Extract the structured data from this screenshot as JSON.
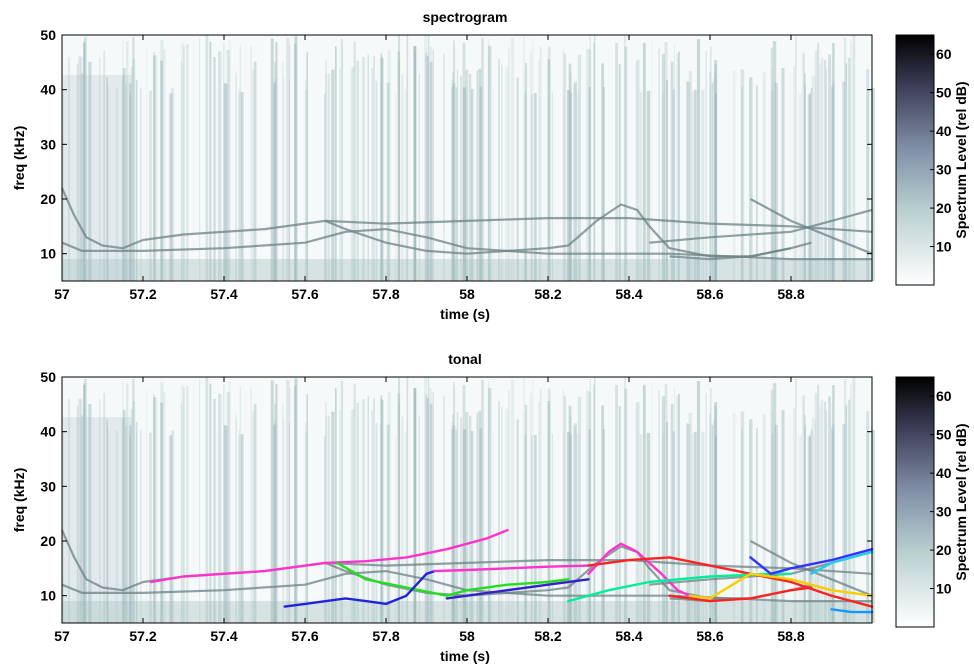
{
  "chart_data": [
    {
      "type": "heatmap",
      "title": "spectrogram",
      "xlabel": "time (s)",
      "ylabel": "freq (kHz)",
      "xlim": [
        57,
        59
      ],
      "ylim": [
        5,
        50
      ],
      "xticks": [
        "57",
        "57.2",
        "57.4",
        "57.6",
        "57.8",
        "58",
        "58.2",
        "58.4",
        "58.6",
        "58.8"
      ],
      "yticks": [
        "10",
        "20",
        "30",
        "40",
        "50"
      ],
      "colorbar": {
        "label": "Spectrum Level (rel dB)",
        "ticks": [
          "10",
          "20",
          "30",
          "40",
          "50",
          "60"
        ],
        "range": [
          0,
          65
        ]
      },
      "background_features": [
        {
          "x": [
            57.0,
            57.03,
            57.06,
            57.1,
            57.15,
            57.2,
            57.3,
            57.5,
            57.65,
            57.8,
            58.0,
            58.2,
            58.4,
            58.6,
            58.8,
            59.0
          ],
          "y": [
            22,
            17,
            13,
            11.5,
            11,
            12.5,
            13.5,
            14.5,
            16,
            15.5,
            16,
            16.5,
            16.5,
            15.5,
            15,
            14
          ]
        },
        {
          "x": [
            57.0,
            57.05,
            57.1,
            57.2,
            57.4,
            57.6,
            57.7,
            57.8,
            57.9,
            58.0,
            58.2,
            58.5,
            58.8,
            59.0
          ],
          "y": [
            12,
            10.5,
            10.5,
            10.5,
            11,
            12,
            14,
            14.5,
            13,
            11,
            10,
            10,
            9,
            9
          ]
        },
        {
          "x": [
            57.65,
            57.7,
            57.8,
            57.9,
            58.0,
            58.1,
            58.2,
            58.25,
            58.32,
            58.38,
            58.42,
            58.45,
            58.5,
            58.6,
            58.7,
            58.8
          ],
          "y": [
            16,
            14.5,
            12,
            10.5,
            10,
            10.5,
            11,
            11.5,
            16,
            19,
            18,
            15,
            11,
            9.5,
            9.5,
            11
          ]
        },
        {
          "x": [
            58.5,
            58.6,
            58.7,
            58.8,
            58.85
          ],
          "y": [
            9.5,
            9,
            9.5,
            11,
            12
          ]
        },
        {
          "x": [
            58.45,
            58.6,
            58.8,
            58.9,
            59.0
          ],
          "y": [
            12,
            13,
            14,
            16,
            18
          ]
        },
        {
          "x": [
            58.7,
            58.8,
            58.9,
            59.0
          ],
          "y": [
            20,
            16,
            13,
            10
          ]
        }
      ]
    },
    {
      "type": "line",
      "title": "tonal",
      "xlabel": "time (s)",
      "ylabel": "freq (kHz)",
      "xlim": [
        57,
        59
      ],
      "ylim": [
        5,
        50
      ],
      "xticks": [
        "57",
        "57.2",
        "57.4",
        "57.6",
        "57.8",
        "58",
        "58.2",
        "58.4",
        "58.6",
        "58.8"
      ],
      "yticks": [
        "10",
        "20",
        "30",
        "40",
        "50"
      ],
      "colorbar": {
        "label": "Spectrum Level (rel dB)",
        "ticks": [
          "10",
          "20",
          "30",
          "40",
          "50",
          "60"
        ],
        "range": [
          0,
          65
        ]
      },
      "series": [
        {
          "color": "#ff33cc",
          "x": [
            57.22,
            57.3,
            57.5,
            57.65,
            57.75,
            57.85,
            57.95,
            58.05,
            58.1
          ],
          "y": [
            12.5,
            13.5,
            14.5,
            16,
            16.3,
            17,
            18.5,
            20.5,
            22
          ]
        },
        {
          "color": "#22dd22",
          "x": [
            57.68,
            57.75,
            57.85,
            57.95,
            58.0,
            58.1,
            58.2,
            58.25
          ],
          "y": [
            16,
            13,
            11.5,
            10,
            11,
            12,
            12.5,
            13
          ]
        },
        {
          "color": "#2222dd",
          "x": [
            57.55,
            57.6,
            57.7,
            57.75,
            57.8,
            57.85,
            57.9,
            57.92
          ],
          "y": [
            8,
            8.5,
            9.5,
            9,
            8.5,
            10,
            14,
            14.5
          ]
        },
        {
          "color": "#ff33cc",
          "x": [
            57.92,
            58.0,
            58.2,
            58.3
          ],
          "y": [
            14.5,
            14.7,
            15.3,
            15.5
          ]
        },
        {
          "color": "#3322cc",
          "x": [
            57.95,
            58.0,
            58.1,
            58.2,
            58.3
          ],
          "y": [
            9.5,
            10,
            11,
            12,
            13
          ]
        },
        {
          "color": "#ff33cc",
          "x": [
            58.3,
            58.35,
            58.38,
            58.42,
            58.48,
            58.52,
            58.55
          ],
          "y": [
            14,
            18,
            19.5,
            18,
            14,
            11,
            10
          ]
        },
        {
          "color": "#ff2222",
          "x": [
            58.3,
            58.4,
            58.5,
            58.6,
            58.7,
            58.8,
            58.9,
            59.0
          ],
          "y": [
            15.5,
            16.5,
            17,
            15.5,
            14,
            12.5,
            10,
            8
          ]
        },
        {
          "color": "#ff2222",
          "x": [
            58.5,
            58.6,
            58.7,
            58.8,
            58.85
          ],
          "y": [
            10,
            9,
            9.5,
            11,
            11.5
          ]
        },
        {
          "color": "#00ee99",
          "x": [
            58.25,
            58.35,
            58.45,
            58.6,
            58.75,
            58.8
          ],
          "y": [
            9,
            11,
            12.5,
            13.5,
            14,
            14
          ]
        },
        {
          "color": "#ffcc00",
          "x": [
            58.55,
            58.6,
            58.7,
            58.8,
            58.9,
            59.0
          ],
          "y": [
            10,
            9.5,
            14,
            13,
            11,
            10
          ]
        },
        {
          "color": "#3333ff",
          "x": [
            58.7,
            58.75,
            58.8,
            58.9,
            59.0
          ],
          "y": [
            17,
            14,
            15,
            16.5,
            18.5
          ]
        },
        {
          "color": "#22ccee",
          "x": [
            58.85,
            58.9,
            58.95,
            59.0
          ],
          "y": [
            14,
            16,
            17,
            18
          ]
        },
        {
          "color": "#1199ff",
          "x": [
            58.9,
            58.95,
            59.0
          ],
          "y": [
            7.5,
            7,
            7
          ]
        }
      ]
    }
  ]
}
